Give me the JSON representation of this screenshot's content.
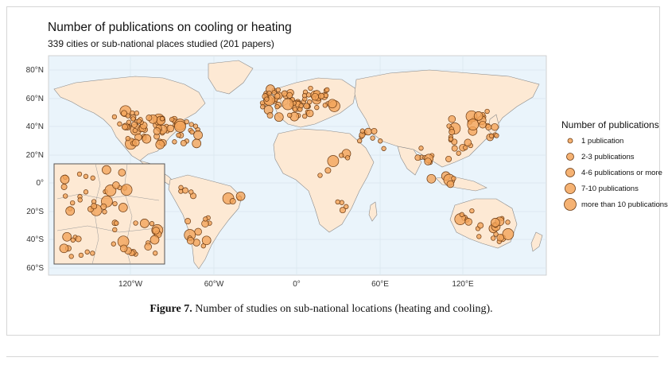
{
  "title": "Number of publications on cooling or heating",
  "subtitle": "339 cities or sub-national places studied (201 papers)",
  "axes": {
    "lat_labels": [
      "80°N",
      "60°N",
      "40°N",
      "20°N",
      "0°",
      "20°S",
      "40°S",
      "60°S"
    ],
    "lon_labels": [
      "120°W",
      "60°W",
      "0°",
      "60°E",
      "120°E"
    ]
  },
  "legend": {
    "title": "Number of publications",
    "items": [
      {
        "label": "1 publication"
      },
      {
        "label": "2-3 publications"
      },
      {
        "label": "4-6 publications or more"
      },
      {
        "label": "7-10 publications"
      },
      {
        "label": "more than 10 publications"
      }
    ]
  },
  "caption": {
    "figure_label": "Figure 7.",
    "text": " Number of studies on sub-national locations (heating and cooling)."
  },
  "colors": {
    "ocean": "#eaf4fb",
    "land": "#fde9d4",
    "border": "#8a8a8a",
    "marker_fill": "#f3a45a",
    "marker_stroke": "#6b3a12"
  }
}
